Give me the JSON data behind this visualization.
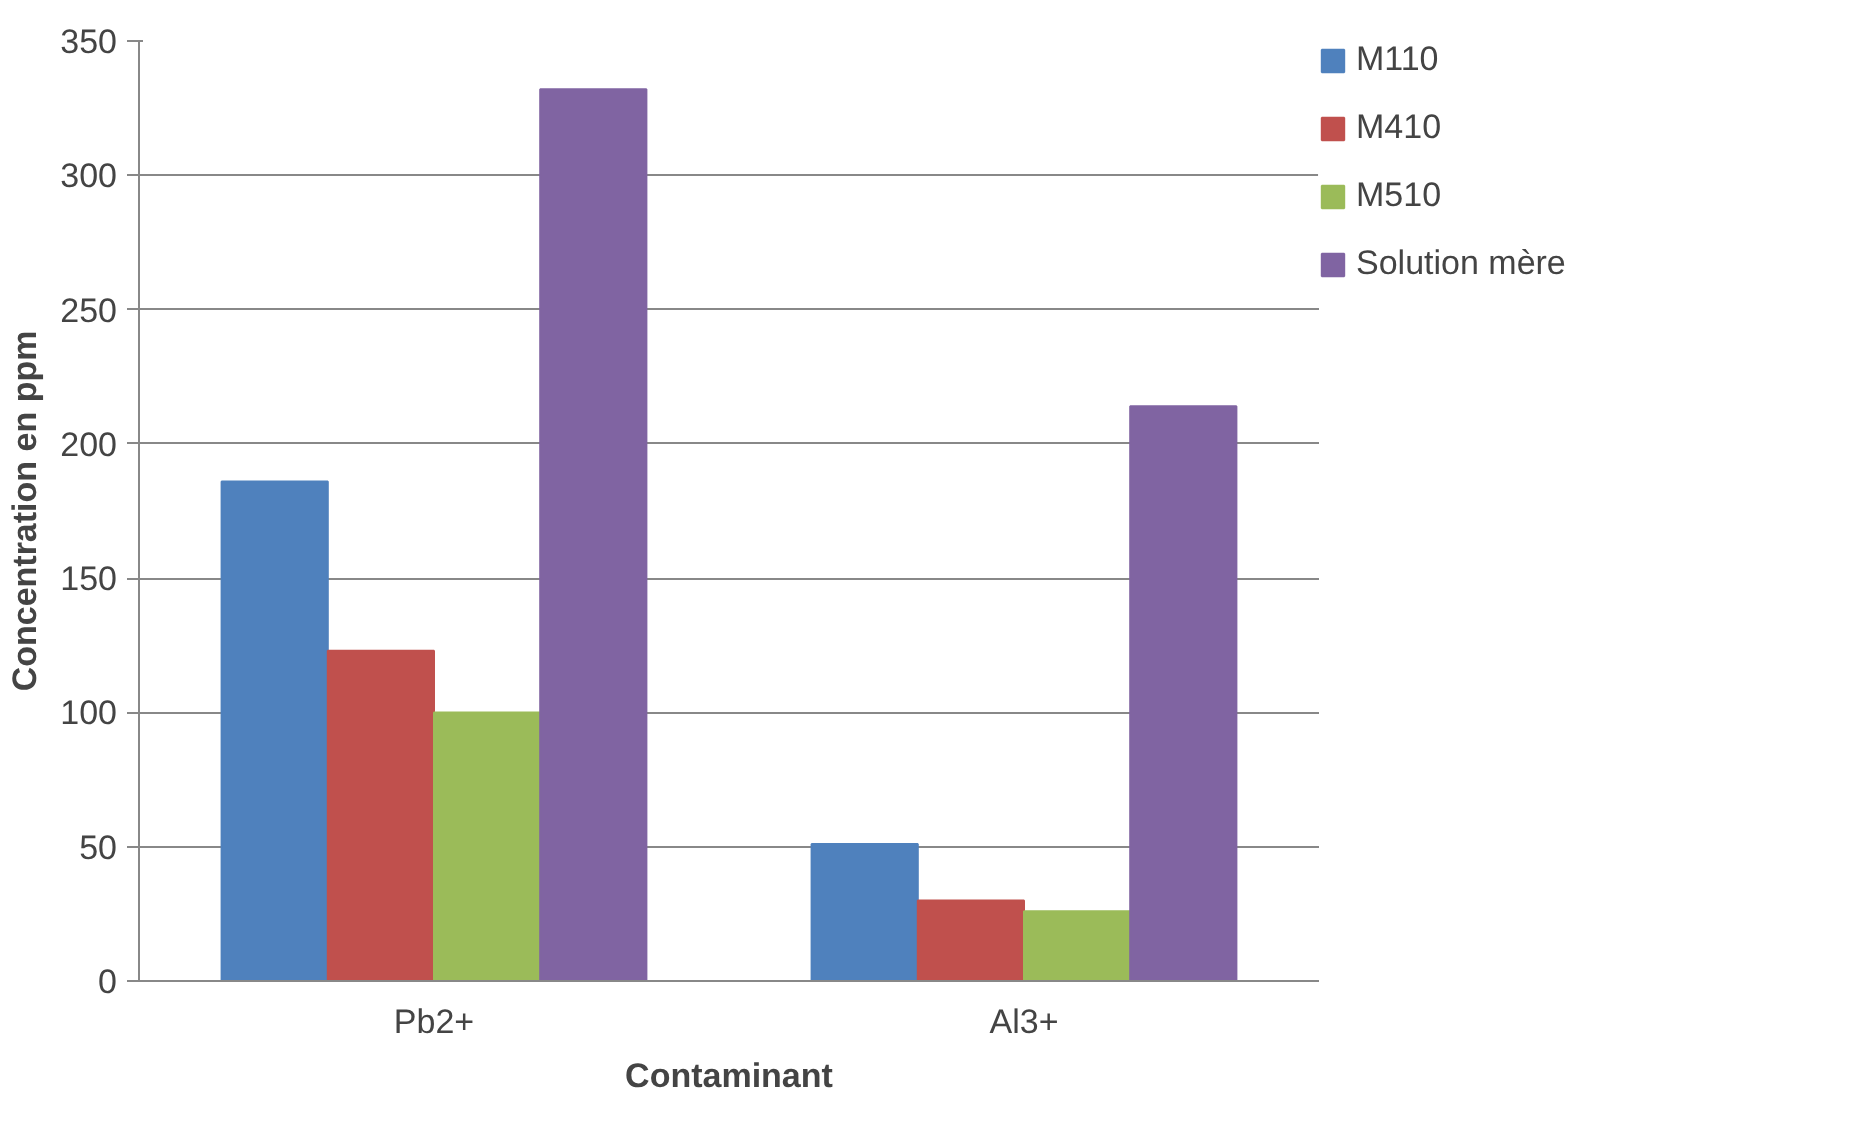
{
  "chart_data": {
    "type": "bar",
    "xlabel": "Contaminant",
    "ylabel": "Concentration en ppm",
    "categories": [
      "Pb2+",
      "Al3+"
    ],
    "series": [
      {
        "name": "M110",
        "color": "#4f81bd",
        "values": [
          186,
          51
        ]
      },
      {
        "name": "M410",
        "color": "#c0504d",
        "values": [
          123,
          30
        ]
      },
      {
        "name": "M510",
        "color": "#9bbb59",
        "values": [
          100,
          26
        ]
      },
      {
        "name": "Solution mère",
        "color": "#8064a2",
        "values": [
          332,
          214
        ]
      }
    ],
    "ylim": [
      0,
      350
    ],
    "yticks": [
      0,
      50,
      100,
      150,
      200,
      250,
      300,
      350
    ],
    "grid": "y",
    "legend": "right"
  }
}
